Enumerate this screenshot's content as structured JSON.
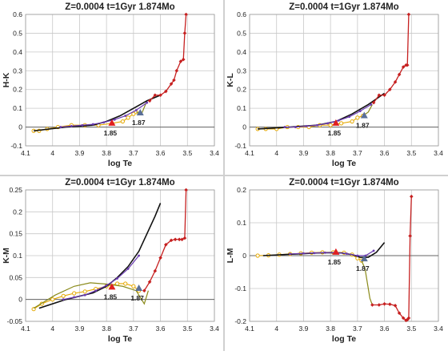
{
  "chart_data": [
    {
      "type": "line",
      "title": "Z=0.0004   t=1Gyr   1.874Mo",
      "xlabel": "log Te",
      "ylabel": "H-K",
      "xlim": [
        4.1,
        3.4
      ],
      "ylim": [
        -0.1,
        0.6
      ],
      "xticks": [
        "4.1",
        "4",
        "3.9",
        "3.8",
        "3.7",
        "3.6",
        "3.5",
        "3.4"
      ],
      "yticks": [
        "-0.1",
        "0",
        "0.1",
        "0.2",
        "0.3",
        "0.4",
        "0.5",
        "0.6"
      ],
      "annotations": [
        {
          "text": "1.85",
          "x": 3.78,
          "y": 0.02,
          "marker": "red-triangle"
        },
        {
          "text": "1.87",
          "x": 3.675,
          "y": 0.075,
          "marker": "blue-triangle"
        }
      ],
      "series": [
        {
          "style": "orange-open-circles",
          "color": "#e5a800",
          "x": [
            4.07,
            4.05,
            4.02,
            3.98,
            3.93,
            3.88,
            3.83,
            3.78,
            3.74,
            3.72,
            3.7,
            3.69
          ],
          "y": [
            -0.02,
            -0.02,
            -0.01,
            0.0,
            0.01,
            0.01,
            0.01,
            0.02,
            0.03,
            0.05,
            0.07,
            0.08
          ]
        },
        {
          "style": "olive-line",
          "color": "#8a8a1a",
          "x": [
            3.69,
            3.67,
            3.65
          ],
          "y": [
            0.08,
            0.07,
            0.14
          ]
        },
        {
          "style": "black-line",
          "color": "#111111",
          "x": [
            4.07,
            3.95,
            3.85,
            3.8,
            3.75,
            3.7,
            3.65,
            3.6
          ],
          "y": [
            -0.02,
            0.0,
            0.01,
            0.03,
            0.06,
            0.1,
            0.14,
            0.17
          ]
        },
        {
          "style": "purple-dots",
          "color": "#6a3ab0",
          "x": [
            3.97,
            3.93,
            3.89,
            3.85,
            3.81,
            3.77,
            3.73,
            3.69,
            3.65
          ],
          "y": [
            0.0,
            0.005,
            0.01,
            0.015,
            0.025,
            0.04,
            0.06,
            0.09,
            0.13
          ]
        },
        {
          "style": "red-line-diamonds",
          "color": "#c62020",
          "x": [
            3.64,
            3.62,
            3.6,
            3.58,
            3.56,
            3.55,
            3.54,
            3.525,
            3.515,
            3.51,
            3.505
          ],
          "y": [
            0.14,
            0.17,
            0.17,
            0.19,
            0.23,
            0.25,
            0.3,
            0.35,
            0.36,
            0.5,
            0.6
          ]
        }
      ]
    },
    {
      "type": "line",
      "title": "Z=0.0004   t=1Gyr   1.874Mo",
      "xlabel": "log Te",
      "ylabel": "K-L",
      "xlim": [
        4.1,
        3.4
      ],
      "ylim": [
        -0.1,
        0.6
      ],
      "xticks": [
        "4.1",
        "4",
        "3.9",
        "3.8",
        "3.7",
        "3.6",
        "3.5",
        "3.4"
      ],
      "yticks": [
        "-0.1",
        "0",
        "0.1",
        "0.2",
        "0.3",
        "0.4",
        "0.5",
        "0.6"
      ],
      "annotations": [
        {
          "text": "1.85",
          "x": 3.78,
          "y": 0.02,
          "marker": "red-triangle"
        },
        {
          "text": "1.87",
          "x": 3.675,
          "y": 0.06,
          "marker": "blue-triangle"
        }
      ],
      "series": [
        {
          "style": "orange-open-circles",
          "color": "#e5a800",
          "x": [
            4.07,
            4.04,
            4.0,
            3.96,
            3.92,
            3.88,
            3.84,
            3.8,
            3.76,
            3.72,
            3.7,
            3.68
          ],
          "y": [
            -0.01,
            -0.01,
            -0.01,
            0.0,
            0.0,
            0.0,
            0.01,
            0.01,
            0.02,
            0.03,
            0.05,
            0.06
          ]
        },
        {
          "style": "olive-line",
          "color": "#8a8a1a",
          "x": [
            3.68,
            3.66,
            3.645
          ],
          "y": [
            0.06,
            0.08,
            0.12
          ]
        },
        {
          "style": "black-line",
          "color": "#111111",
          "x": [
            4.07,
            3.95,
            3.85,
            3.78,
            3.72,
            3.66,
            3.6
          ],
          "y": [
            -0.01,
            0.0,
            0.01,
            0.03,
            0.07,
            0.12,
            0.18
          ]
        },
        {
          "style": "purple-dots",
          "color": "#6a3ab0",
          "x": [
            3.97,
            3.93,
            3.89,
            3.85,
            3.81,
            3.77,
            3.73,
            3.69,
            3.65
          ],
          "y": [
            0.0,
            0.0,
            0.005,
            0.01,
            0.02,
            0.035,
            0.055,
            0.085,
            0.12
          ]
        },
        {
          "style": "red-line-diamonds",
          "color": "#c62020",
          "x": [
            3.64,
            3.62,
            3.6,
            3.58,
            3.56,
            3.545,
            3.53,
            3.52,
            3.515,
            3.51
          ],
          "y": [
            0.13,
            0.17,
            0.17,
            0.2,
            0.24,
            0.28,
            0.32,
            0.33,
            0.33,
            0.6
          ]
        }
      ]
    },
    {
      "type": "line",
      "title": "Z=0.0004   t=1Gyr   1.874Mo",
      "xlabel": "log Te",
      "ylabel": "K-M",
      "xlim": [
        4.1,
        3.4
      ],
      "ylim": [
        -0.05,
        0.25
      ],
      "xticks": [
        "4.1",
        "4",
        "3.9",
        "3.8",
        "3.7",
        "3.6",
        "3.5",
        "3.4"
      ],
      "yticks": [
        "-0.05",
        "0",
        "0.05",
        "0.1",
        "0.15",
        "0.2",
        "0.25"
      ],
      "annotations": [
        {
          "text": "1.85",
          "x": 3.78,
          "y": 0.028,
          "marker": "red-triangle"
        },
        {
          "text": "1.87",
          "x": 3.68,
          "y": 0.025,
          "marker": "blue-triangle"
        }
      ],
      "series": [
        {
          "style": "orange-open-circles",
          "color": "#e5a800",
          "x": [
            4.07,
            4.04,
            4.0,
            3.96,
            3.92,
            3.88,
            3.84,
            3.8,
            3.76,
            3.73,
            3.7,
            3.68
          ],
          "y": [
            -0.022,
            -0.01,
            0.0,
            0.008,
            0.014,
            0.018,
            0.024,
            0.03,
            0.036,
            0.036,
            0.03,
            0.02
          ]
        },
        {
          "style": "olive-line",
          "color": "#8a8a1a",
          "x": [
            4.07,
            3.99,
            3.92,
            3.86,
            3.8,
            3.74,
            3.69,
            3.66,
            3.645
          ],
          "y": [
            -0.02,
            0.01,
            0.03,
            0.038,
            0.035,
            0.03,
            0.02,
            -0.01,
            0.02
          ]
        },
        {
          "style": "black-line",
          "color": "#111111",
          "x": [
            4.05,
            3.95,
            3.85,
            3.8,
            3.76,
            3.72,
            3.68,
            3.65,
            3.62,
            3.6
          ],
          "y": [
            -0.02,
            0.0,
            0.015,
            0.03,
            0.05,
            0.075,
            0.11,
            0.15,
            0.19,
            0.22
          ]
        },
        {
          "style": "purple-dots",
          "color": "#6a3ab0",
          "x": [
            3.96,
            3.92,
            3.88,
            3.84,
            3.8,
            3.76,
            3.72,
            3.68
          ],
          "y": [
            0.0,
            0.005,
            0.01,
            0.02,
            0.032,
            0.048,
            0.07,
            0.1
          ]
        },
        {
          "style": "red-line-diamonds",
          "color": "#c62020",
          "x": [
            3.66,
            3.64,
            3.62,
            3.6,
            3.58,
            3.56,
            3.545,
            3.53,
            3.52,
            3.51,
            3.505
          ],
          "y": [
            0.02,
            0.04,
            0.065,
            0.095,
            0.125,
            0.135,
            0.137,
            0.137,
            0.137,
            0.14,
            0.25
          ]
        }
      ]
    },
    {
      "type": "line",
      "title": "Z=0.0004   t=1Gyr   1.874Mo",
      "xlabel": "log Te",
      "ylabel": "L-M",
      "xlim": [
        4.1,
        3.4
      ],
      "ylim": [
        -0.2,
        0.2
      ],
      "xticks": [
        "4.1",
        "4",
        "3.9",
        "3.8",
        "3.7",
        "3.6",
        "3.5",
        "3.4"
      ],
      "yticks": [
        "-0.2",
        "-0.1",
        "0",
        "0.1",
        "0.2"
      ],
      "annotations": [
        {
          "text": "1.85",
          "x": 3.78,
          "y": 0.01,
          "marker": "red-triangle"
        },
        {
          "text": "1.87",
          "x": 3.675,
          "y": -0.01,
          "marker": "blue-triangle"
        }
      ],
      "series": [
        {
          "style": "orange-open-circles",
          "color": "#e5a800",
          "x": [
            4.07,
            4.03,
            3.99,
            3.95,
            3.91,
            3.87,
            3.83,
            3.79,
            3.75,
            3.72,
            3.7,
            3.685
          ],
          "y": [
            0.0,
            0.001,
            0.003,
            0.005,
            0.007,
            0.009,
            0.01,
            0.01,
            0.009,
            0.003,
            -0.008,
            -0.015
          ]
        },
        {
          "style": "olive-line",
          "color": "#8a8a1a",
          "x": [
            3.685,
            3.672,
            3.662,
            3.654,
            3.645
          ],
          "y": [
            -0.015,
            -0.04,
            -0.09,
            -0.13,
            -0.15
          ]
        },
        {
          "style": "black-line",
          "color": "#111111",
          "x": [
            4.05,
            3.95,
            3.85,
            3.8,
            3.76,
            3.72,
            3.69,
            3.66,
            3.63,
            3.6
          ],
          "y": [
            0.0,
            0.004,
            0.008,
            0.009,
            0.008,
            0.003,
            -0.005,
            -0.005,
            0.01,
            0.04
          ]
        },
        {
          "style": "purple-dots",
          "color": "#6a3ab0",
          "x": [
            3.95,
            3.9,
            3.86,
            3.82,
            3.78,
            3.74,
            3.7,
            3.67,
            3.64
          ],
          "y": [
            0.005,
            0.007,
            0.008,
            0.009,
            0.009,
            0.006,
            0.0,
            0.0,
            0.015
          ]
        },
        {
          "style": "red-line-diamonds",
          "color": "#c62020",
          "x": [
            3.645,
            3.62,
            3.6,
            3.58,
            3.56,
            3.545,
            3.53,
            3.52,
            3.515,
            3.51,
            3.505,
            3.5
          ],
          "y": [
            -0.15,
            -0.15,
            -0.147,
            -0.148,
            -0.152,
            -0.175,
            -0.19,
            -0.197,
            -0.195,
            -0.19,
            0.06,
            0.18
          ]
        }
      ]
    }
  ]
}
